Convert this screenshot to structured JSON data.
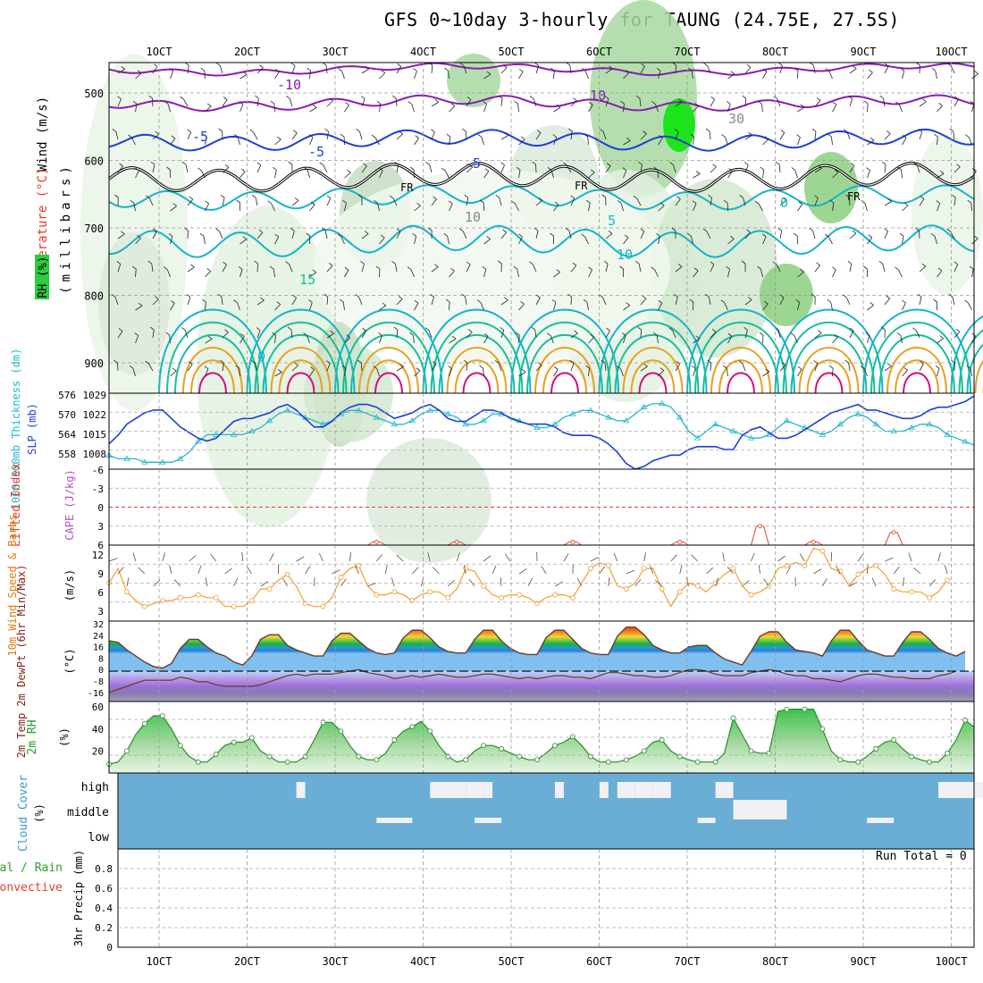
{
  "title": "GFS 0~10day 3-hourly for TAUNG (24.75E, 27.5S)",
  "run_total": "Run Total = 0",
  "colors": {
    "rh_green": "#2ecc40",
    "bright_green": "#00e600",
    "purple": "#8c1ab3",
    "blue": "#1c3fd6",
    "teal": "#12b5c9",
    "green_contour": "#14bf9a",
    "orange": "#e6a020",
    "magenta": "#d0127a",
    "slp_line": "#1c3fd6",
    "thickness_line": "#22b8c8",
    "wind_speed": "#f0a030",
    "barb": "#6b4a2b",
    "temp_line": "#6b3a2a",
    "dew_line": "#6b3a2a",
    "rh2m_line": "#2a8a2a",
    "cloud_bg": "#6aaed6",
    "cloud_fill": "#f0f0f5",
    "li_line": "#e0402a"
  },
  "x_ticks": [
    "1OCT",
    "2OCT",
    "3OCT",
    "4OCT",
    "5OCT",
    "6OCT",
    "7OCT",
    "8OCT",
    "9OCT",
    "10OCT"
  ],
  "panels": {
    "upper": {
      "left_labels": [
        "Wind (m/s)",
        "Temperature (°C)",
        "RH (%)"
      ],
      "yaxis_title": "(millibars)",
      "y_ticks": [
        "500",
        "600",
        "700",
        "800",
        "900"
      ],
      "contour_labels": [
        "-10",
        "10",
        "-5",
        "-5",
        "5",
        "10",
        "15",
        "-5",
        "0",
        "0",
        "30",
        "10",
        "FR",
        "FR",
        "FR"
      ]
    },
    "slp": {
      "label_left": "1000-500mb Thickness (dm)",
      "label_right": "SLP (mb)",
      "y_ticks_left": [
        "576",
        "570",
        "564",
        "558"
      ],
      "y_ticks_right": [
        "1029",
        "1022",
        "1015",
        "1008"
      ]
    },
    "li": {
      "label_left": "Lifted Index",
      "label_right": "CAPE (J/kg)",
      "y_ticks": [
        "-6",
        "-3",
        "0",
        "3",
        "6"
      ]
    },
    "wind10": {
      "label": "10m Wind Speed & Barbs",
      "units": "(m/s)",
      "y_ticks": [
        "12",
        "9",
        "6",
        "3"
      ]
    },
    "temp": {
      "label": "2m Temp 2m DewPt (6hr Min/Max)",
      "units": "(°C)",
      "y_ticks": [
        "32",
        "24",
        "16",
        "8",
        "0",
        "-8",
        "-16"
      ]
    },
    "rh2m": {
      "label": "2m RH",
      "units": "(%)",
      "y_ticks": [
        "60",
        "40",
        "20"
      ]
    },
    "cloud": {
      "label": "Cloud Cover",
      "units": "(%)",
      "levels": [
        "high",
        "middle",
        "low"
      ]
    },
    "precip": {
      "label_total": "Total / Rain",
      "label_conv": "Convective",
      "label_axis": "3hr Precip (mm)",
      "y_ticks": [
        "0.8",
        "0.6",
        "0.4",
        "0.2",
        "0"
      ]
    }
  },
  "chart_data": [
    {
      "type": "line",
      "name": "SLP / Thickness",
      "x_unit": "3-hourly steps from 1OCT 00Z",
      "series": [
        {
          "name": "SLP",
          "values": [
            1013,
            1016,
            1020,
            1022,
            1024,
            1025,
            1025,
            1022,
            1019,
            1017,
            1015,
            1014,
            1015,
            1018,
            1021,
            1022,
            1022,
            1023,
            1024,
            1026,
            1027,
            1025,
            1022,
            1019,
            1019,
            1021,
            1024,
            1026,
            1027,
            1027,
            1026,
            1024,
            1022,
            1023,
            1024,
            1026,
            1027,
            1025,
            1022,
            1021,
            1021,
            1023,
            1025,
            1025,
            1024,
            1022,
            1021,
            1020,
            1020,
            1020,
            1019,
            1017,
            1016,
            1016,
            1016,
            1015,
            1013,
            1010,
            1006,
            1004,
            1005,
            1007,
            1008,
            1009,
            1009,
            1011,
            1012,
            1012,
            1012,
            1011,
            1011,
            1016,
            1018,
            1019,
            1017,
            1015,
            1015,
            1016,
            1018,
            1020,
            1022,
            1024,
            1025,
            1026,
            1027,
            1025,
            1025,
            1024,
            1023,
            1022,
            1022,
            1023,
            1025,
            1026,
            1026,
            1027,
            1028,
            1030
          ]
        },
        {
          "name": "Thickness",
          "values": [
            559,
            558,
            558,
            558,
            557,
            557,
            557,
            557,
            558,
            560,
            563,
            565,
            565,
            565,
            565,
            565,
            566,
            567,
            569,
            571,
            572,
            571,
            570,
            569,
            568,
            569,
            571,
            572,
            572,
            571,
            570,
            569,
            568,
            568,
            569,
            571,
            572,
            572,
            571,
            570,
            568,
            568,
            569,
            571,
            571,
            570,
            569,
            568,
            567,
            567,
            568,
            570,
            571,
            572,
            572,
            571,
            570,
            569,
            569,
            571,
            573,
            574,
            574,
            573,
            570,
            566,
            564,
            566,
            568,
            567,
            566,
            565,
            564,
            564,
            565,
            567,
            569,
            568,
            567,
            566,
            565,
            566,
            568,
            570,
            571,
            570,
            568,
            566,
            566,
            566,
            567,
            568,
            568,
            567,
            565,
            564,
            563,
            562
          ]
        }
      ],
      "ylim_left": [
        555,
        577
      ],
      "ylim_right": [
        1004,
        1031
      ]
    },
    {
      "type": "line",
      "name": "Lifted Index",
      "ylim": [
        -6,
        6
      ],
      "peaks_x": [
        30,
        39,
        52,
        64,
        73,
        79,
        88
      ],
      "peaks_y": [
        5.5,
        5.5,
        5.5,
        5.5,
        3,
        5.5,
        4
      ]
    },
    {
      "type": "line",
      "name": "10m Wind Speed",
      "values": [
        6.5,
        9,
        5,
        3.5,
        2.5,
        3,
        3.5,
        3.5,
        4,
        4,
        4.5,
        4,
        4,
        2.5,
        2.5,
        2.5,
        3.5,
        5.5,
        5.5,
        7,
        8,
        6,
        3,
        2.5,
        2.5,
        4,
        7.5,
        9,
        9.5,
        6,
        4.5,
        4.5,
        5,
        4.5,
        3.5,
        4.5,
        5,
        5,
        4,
        5.5,
        9,
        8.5,
        6,
        4.5,
        4,
        4.5,
        4.5,
        4,
        3,
        4,
        4.5,
        4.5,
        4,
        6.5,
        9,
        10,
        9.5,
        6,
        5.5,
        6.5,
        9,
        9,
        5.5,
        2.5,
        5,
        6.5,
        6,
        5,
        6.5,
        8,
        9,
        6,
        4.5,
        5,
        6,
        9,
        9.5,
        10,
        9.5,
        12.5,
        12,
        9,
        8.5,
        6,
        8,
        9,
        9.5,
        8,
        5.5,
        5,
        5,
        5,
        4,
        5,
        7
      ],
      "ylim": [
        0,
        13
      ]
    },
    {
      "type": "area",
      "name": "2m Temp / DewPt",
      "temp": [
        20,
        19,
        14,
        10,
        6,
        3,
        2,
        5,
        15,
        21,
        21,
        16,
        12,
        10,
        6,
        4,
        10,
        21,
        24,
        24,
        17,
        14,
        12,
        10,
        10,
        20,
        25,
        25,
        20,
        15,
        12,
        11,
        12,
        22,
        27,
        27,
        22,
        16,
        13,
        12,
        12,
        21,
        27,
        27,
        20,
        15,
        12,
        11,
        11,
        22,
        27,
        27,
        21,
        15,
        12,
        11,
        11,
        23,
        29,
        29,
        24,
        17,
        14,
        12,
        12,
        16,
        17,
        17,
        12,
        8,
        6,
        4,
        13,
        23,
        26,
        26,
        19,
        14,
        13,
        12,
        10,
        20,
        27,
        27,
        20,
        14,
        12,
        10,
        10,
        19,
        26,
        26,
        21,
        15,
        12,
        10,
        13
      ],
      "dewpoint": [
        -14,
        -12,
        -10,
        -8,
        -6,
        -6,
        -6,
        -6,
        -4,
        -5,
        -7,
        -7,
        -9,
        -10,
        -10,
        -10,
        -10,
        -9,
        -7,
        -5,
        -3,
        -2,
        -3,
        -2,
        -2,
        -2,
        -1,
        0,
        1,
        -1,
        -2,
        -3,
        -5,
        -4,
        -3,
        -4,
        -3,
        -2,
        -3,
        -4,
        -4,
        -3,
        -2,
        -2,
        -3,
        -4,
        -5,
        -4,
        -5,
        -4,
        -3,
        -3,
        -4,
        -4,
        -5,
        -3,
        -1,
        -1,
        -2,
        -3,
        -3,
        -4,
        -4,
        -3,
        -1,
        1,
        1,
        0,
        -2,
        -3,
        -3,
        -3,
        -1,
        0,
        1,
        0,
        -2,
        -3,
        -3,
        -5,
        -5,
        -6,
        -7,
        -5,
        -3,
        -2,
        -2,
        -3,
        -4,
        -4,
        -5,
        -5,
        -5,
        -3,
        -2,
        0
      ],
      "ylim": [
        -20,
        33
      ]
    },
    {
      "type": "area",
      "name": "2m RH",
      "values": [
        8,
        10,
        20,
        35,
        45,
        52,
        52,
        40,
        25,
        15,
        10,
        10,
        17,
        25,
        28,
        28,
        32,
        20,
        15,
        10,
        10,
        10,
        15,
        30,
        46,
        46,
        38,
        25,
        15,
        12,
        12,
        18,
        30,
        38,
        42,
        47,
        38,
        25,
        15,
        10,
        12,
        20,
        25,
        25,
        22,
        18,
        15,
        12,
        12,
        18,
        25,
        28,
        33,
        25,
        15,
        10,
        10,
        10,
        12,
        15,
        20,
        28,
        30,
        20,
        15,
        12,
        10,
        10,
        10,
        18,
        50,
        35,
        20,
        18,
        18,
        56,
        58,
        58,
        58,
        58,
        40,
        20,
        12,
        10,
        10,
        15,
        22,
        28,
        30,
        22,
        15,
        12,
        10,
        10,
        18,
        30,
        48,
        42
      ],
      "ylim": [
        0,
        65
      ]
    },
    {
      "type": "bar",
      "name": "Cloud Cover",
      "high": [
        [
          21,
          22
        ],
        [
          36,
          40
        ],
        [
          40,
          42
        ],
        [
          42,
          43
        ],
        [
          50,
          51
        ],
        [
          55,
          56
        ],
        [
          57,
          59
        ],
        [
          59,
          61
        ],
        [
          61,
          63
        ],
        [
          68,
          70
        ],
        [
          93,
          97
        ],
        [
          97,
          102
        ]
      ],
      "middle": [
        [
          70,
          72
        ],
        [
          72,
          76
        ]
      ],
      "low": [
        [
          30,
          34
        ],
        [
          41,
          44
        ],
        [
          66,
          68
        ],
        [
          85,
          88
        ]
      ]
    },
    {
      "type": "bar",
      "name": "3hr Precip",
      "values": [],
      "ylim": [
        0,
        1
      ]
    }
  ]
}
